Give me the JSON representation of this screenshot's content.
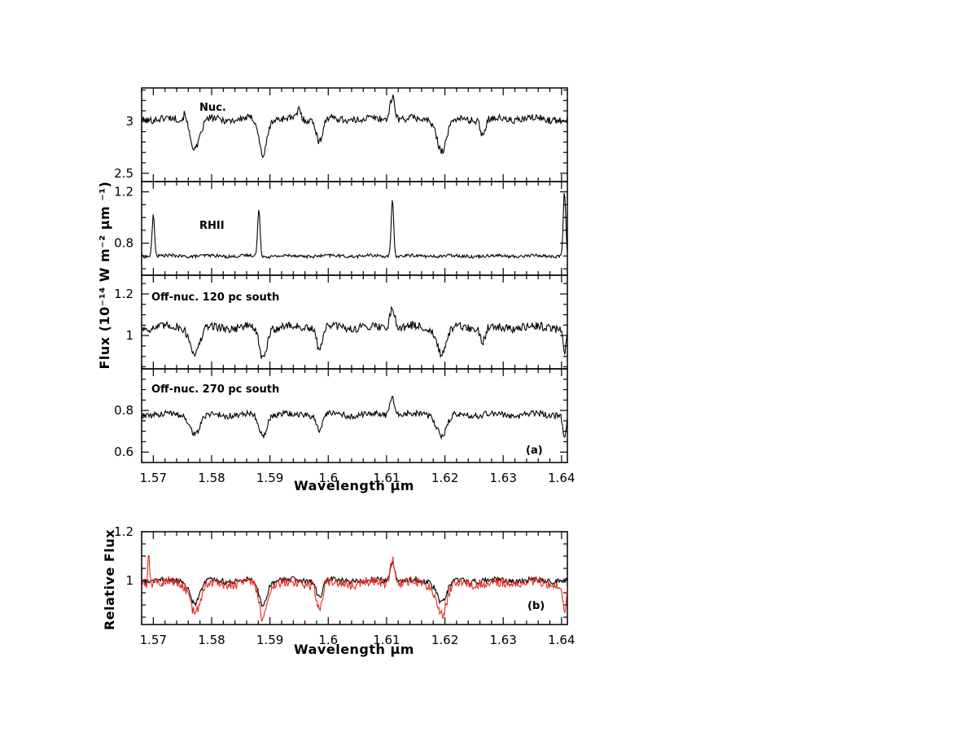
{
  "figure": {
    "top_xlabel": "Wavelength μm",
    "bottom_xlabel": "Wavelength μm",
    "top_ylabel": "Flux (10⁻¹⁴ W m⁻² μm ⁻¹)",
    "bottom_ylabel": "Relative Flux",
    "panel_a_tag": "(a)",
    "panel_b_tag": "(b)"
  },
  "chart_data": [
    {
      "type": "line",
      "panel": "Nuc.",
      "label": "Nuc.",
      "xlim": [
        1.568,
        1.641
      ],
      "ylim": [
        2.42,
        3.32
      ],
      "yticks": [
        2.5,
        3
      ],
      "ytick_labels": [
        "2.5",
        "3"
      ],
      "baseline": 3.02,
      "noise": 0.035,
      "features": [
        {
          "x": 1.5772,
          "depth": -0.28,
          "width": 0.0012
        },
        {
          "x": 1.5888,
          "depth": -0.34,
          "width": 0.0009
        },
        {
          "x": 1.5985,
          "depth": -0.22,
          "width": 0.0007
        },
        {
          "x": 1.611,
          "depth": 0.22,
          "width": 0.0006
        },
        {
          "x": 1.6195,
          "depth": -0.3,
          "width": 0.0012
        },
        {
          "x": 1.5755,
          "depth": 0.1,
          "width": 0.0004
        },
        {
          "x": 1.595,
          "depth": 0.1,
          "width": 0.0004
        },
        {
          "x": 1.6265,
          "depth": -0.15,
          "width": 0.0006
        }
      ],
      "color": "#000000"
    },
    {
      "type": "line",
      "panel": "RHII",
      "label": "RHII",
      "xlim": [
        1.568,
        1.641
      ],
      "ylim": [
        0.55,
        1.28
      ],
      "yticks": [
        0.8,
        1.2
      ],
      "ytick_labels": [
        "0.8",
        "1.2"
      ],
      "baseline": 0.7,
      "noise": 0.012,
      "features": [
        {
          "x": 1.57,
          "depth": 0.32,
          "width": 0.0003
        },
        {
          "x": 1.5881,
          "depth": 0.36,
          "width": 0.0003
        },
        {
          "x": 1.611,
          "depth": 0.44,
          "width": 0.0003
        },
        {
          "x": 1.6405,
          "depth": 0.5,
          "width": 0.0003
        }
      ],
      "color": "#000000"
    },
    {
      "type": "line",
      "panel": "Off-nuc. 120 pc south",
      "label": "Off-nuc. 120 pc south",
      "xlim": [
        1.568,
        1.641
      ],
      "ylim": [
        0.84,
        1.29
      ],
      "yticks": [
        1,
        1.2
      ],
      "ytick_labels": [
        "1",
        "1.2"
      ],
      "baseline": 1.04,
      "noise": 0.02,
      "features": [
        {
          "x": 1.5772,
          "depth": -0.12,
          "width": 0.0012
        },
        {
          "x": 1.5888,
          "depth": -0.15,
          "width": 0.0009
        },
        {
          "x": 1.5985,
          "depth": -0.1,
          "width": 0.0007
        },
        {
          "x": 1.611,
          "depth": 0.1,
          "width": 0.0006
        },
        {
          "x": 1.6195,
          "depth": -0.13,
          "width": 0.0012
        },
        {
          "x": 1.6265,
          "depth": -0.07,
          "width": 0.0006
        },
        {
          "x": 1.6405,
          "depth": -0.12,
          "width": 0.0004
        }
      ],
      "color": "#000000"
    },
    {
      "type": "line",
      "panel": "Off-nuc. 270 pc south",
      "label": "Off-nuc. 270 pc south",
      "xlim": [
        1.568,
        1.641
      ],
      "ylim": [
        0.55,
        1.0
      ],
      "yticks": [
        0.6,
        0.8
      ],
      "ytick_labels": [
        "0.6",
        "0.8"
      ],
      "baseline": 0.78,
      "noise": 0.015,
      "features": [
        {
          "x": 1.5772,
          "depth": -0.09,
          "width": 0.0012
        },
        {
          "x": 1.5888,
          "depth": -0.1,
          "width": 0.0009
        },
        {
          "x": 1.5985,
          "depth": -0.07,
          "width": 0.0007
        },
        {
          "x": 1.611,
          "depth": 0.08,
          "width": 0.0006
        },
        {
          "x": 1.6195,
          "depth": -0.1,
          "width": 0.0012
        },
        {
          "x": 1.6405,
          "depth": -0.1,
          "width": 0.0004
        }
      ],
      "color": "#000000"
    },
    {
      "type": "line",
      "panel": "(b)",
      "xlim": [
        1.568,
        1.641
      ],
      "ylim": [
        0.82,
        1.2
      ],
      "yticks": [
        1,
        1.2
      ],
      "ytick_labels": [
        "1",
        "1.2"
      ],
      "series": [
        {
          "baseline": 1.0,
          "noise": 0.012,
          "color": "#000000",
          "features": [
            {
              "x": 1.5772,
              "depth": -0.09,
              "width": 0.0012
            },
            {
              "x": 1.5888,
              "depth": -0.1,
              "width": 0.0009
            },
            {
              "x": 1.5985,
              "depth": -0.07,
              "width": 0.0007
            },
            {
              "x": 1.611,
              "depth": 0.08,
              "width": 0.0006
            },
            {
              "x": 1.6195,
              "depth": -0.09,
              "width": 0.0012
            }
          ]
        },
        {
          "baseline": 0.99,
          "noise": 0.02,
          "color": "#e8281e",
          "features": [
            {
              "x": 1.5692,
              "depth": 0.14,
              "width": 0.0002
            },
            {
              "x": 1.5772,
              "depth": -0.12,
              "width": 0.0012
            },
            {
              "x": 1.5888,
              "depth": -0.14,
              "width": 0.0009
            },
            {
              "x": 1.5985,
              "depth": -0.1,
              "width": 0.0007
            },
            {
              "x": 1.611,
              "depth": 0.1,
              "width": 0.0006
            },
            {
              "x": 1.6195,
              "depth": -0.13,
              "width": 0.0012
            },
            {
              "x": 1.6405,
              "depth": -0.12,
              "width": 0.0004
            }
          ]
        }
      ]
    }
  ],
  "xaxis": {
    "ticks": [
      1.57,
      1.58,
      1.59,
      1.6,
      1.61,
      1.62,
      1.63,
      1.64
    ],
    "tick_labels": [
      "1.57",
      "1.58",
      "1.59",
      "1.6",
      "1.61",
      "1.62",
      "1.63",
      "1.64"
    ]
  }
}
